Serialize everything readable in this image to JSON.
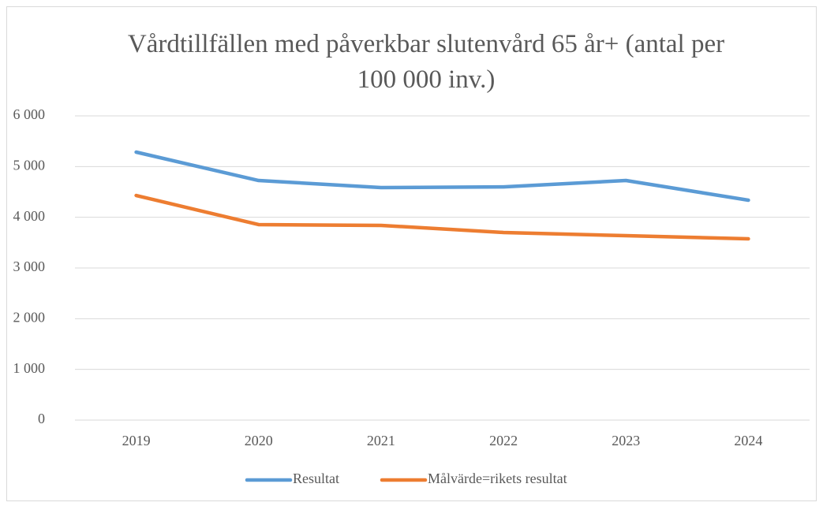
{
  "chart_data": {
    "type": "line",
    "title": "Vårdtillfällen med påverkbar slutenvård 65 år+ (antal per 100 000 inv.)",
    "categories": [
      "2019",
      "2020",
      "2021",
      "2022",
      "2023",
      "2024"
    ],
    "series": [
      {
        "name": "Resultat",
        "color": "#5b9bd5",
        "values": [
          5285,
          4725,
          4585,
          4600,
          4725,
          4337
        ]
      },
      {
        "name": "Målvärde=rikets resultat",
        "color": "#ed7d31",
        "values": [
          4430,
          3855,
          3840,
          3700,
          3637,
          3575
        ]
      }
    ],
    "ylim": [
      0,
      6000
    ],
    "yticks": [
      0,
      {
        "value": 1000,
        "label": "1 000"
      },
      {
        "value": 2000,
        "label": "2 000"
      },
      {
        "value": 3000,
        "label": "3 000"
      },
      {
        "value": 4000,
        "label": "4 000"
      },
      {
        "value": 5000,
        "label": "5 000"
      },
      {
        "value": 6000,
        "label": "6 000"
      }
    ],
    "grid": true,
    "legend": "bottom"
  }
}
